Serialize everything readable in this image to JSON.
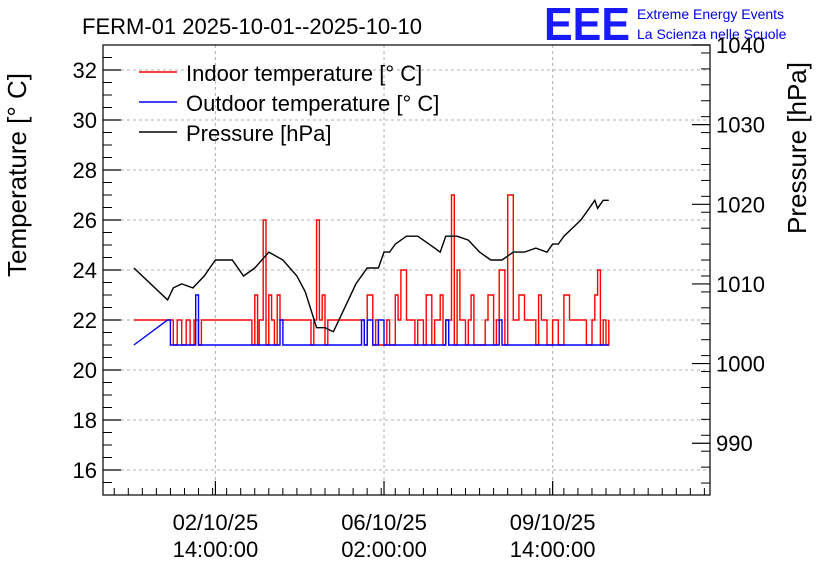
{
  "header": {
    "title": "FERM-01 2025-10-01--2025-10-10",
    "logo_text": "EEE",
    "org_line1": "Extreme Energy Events",
    "org_line2": "La Scienza nelle Scuole"
  },
  "chart_data": {
    "type": "line",
    "title": "FERM-01 2025-10-01--2025-10-10",
    "ylabel": "Temperature [° C]",
    "y2label": "Pressure [hPa]",
    "ylim": [
      15,
      33
    ],
    "y2lim": [
      983.5,
      1040
    ],
    "yticks": [
      16,
      18,
      20,
      22,
      24,
      26,
      28,
      30,
      32
    ],
    "y2ticks": [
      990,
      1000,
      1010,
      1020,
      1030,
      1040
    ],
    "xlim": [
      0,
      10.8
    ],
    "xticks": [
      {
        "t": 2.0,
        "line1": "02/10/25",
        "line2": "14:00:00"
      },
      {
        "t": 5.0,
        "line1": "06/10/25",
        "line2": "02:00:00"
      },
      {
        "t": 8.0,
        "line1": "09/10/25",
        "line2": "14:00:00"
      }
    ],
    "grid": true,
    "legend_position": "top-left",
    "legend": [
      {
        "label": "Indoor temperature [° C]",
        "color": "#ff0000"
      },
      {
        "label": "Outdoor temperature [° C]",
        "color": "#0000ff"
      },
      {
        "label": "Pressure [hPa]",
        "color": "#000000"
      }
    ],
    "series": [
      {
        "name": "Indoor temperature [° C]",
        "axis": "left",
        "color": "#ff0000",
        "x": [
          0.55,
          1.15,
          1.2,
          1.25,
          1.32,
          1.4,
          1.48,
          1.55,
          1.62,
          1.7,
          1.75,
          2.6,
          2.65,
          2.7,
          2.75,
          2.78,
          2.85,
          2.9,
          2.95,
          3.0,
          3.05,
          3.1,
          3.15,
          3.2,
          3.7,
          3.75,
          3.8,
          3.85,
          3.9,
          3.95,
          4.0,
          4.05,
          4.1,
          4.6,
          4.65,
          4.7,
          4.8,
          4.85,
          4.9,
          5.05,
          5.1,
          5.2,
          5.25,
          5.3,
          5.4,
          5.55,
          5.6,
          5.7,
          5.75,
          5.85,
          5.9,
          6.0,
          6.05,
          6.1,
          6.2,
          6.25,
          6.3,
          6.35,
          6.45,
          6.5,
          6.55,
          6.6,
          6.8,
          6.85,
          6.95,
          7.0,
          7.05,
          7.15,
          7.2,
          7.3,
          7.4,
          7.5,
          7.7,
          7.75,
          7.8,
          7.9,
          8.0,
          8.05,
          8.1,
          8.2,
          8.3,
          8.5,
          8.6,
          8.7,
          8.75,
          8.8,
          8.85,
          8.9,
          8.95,
          9.0
        ],
        "values": [
          22,
          22,
          22,
          21,
          22,
          21,
          22,
          21,
          22,
          21,
          22,
          22,
          21,
          23,
          21,
          22,
          26,
          21,
          23,
          22,
          21,
          23,
          22,
          22,
          21,
          22,
          26,
          22,
          23,
          21,
          22,
          22,
          22,
          22,
          21,
          23,
          21,
          22,
          21,
          22,
          21,
          23,
          22,
          24,
          22,
          21,
          22,
          21,
          23,
          21,
          22,
          23,
          21,
          22,
          27,
          21,
          24,
          22,
          21,
          22,
          23,
          21,
          22,
          23,
          21,
          22,
          24,
          21,
          27,
          22,
          23,
          22,
          21,
          23,
          22,
          21,
          22,
          22,
          21,
          23,
          22,
          22,
          21,
          22,
          23,
          24,
          21,
          22,
          21,
          22
        ]
      },
      {
        "name": "Outdoor temperature [° C]",
        "axis": "left",
        "color": "#0000ff",
        "x": [
          0.55,
          1.15,
          1.2,
          1.6,
          1.65,
          1.7,
          3.1,
          3.15,
          3.2,
          4.55,
          4.6,
          4.65,
          4.7,
          4.8,
          4.9,
          5.0,
          6.05,
          6.1,
          6.15,
          7.0,
          7.05,
          7.1,
          9.0
        ],
        "values": [
          21,
          22,
          21,
          21,
          23,
          21,
          21,
          22,
          21,
          21,
          22,
          21,
          22,
          21,
          22,
          21,
          21,
          22,
          21,
          21,
          22,
          21,
          21
        ]
      },
      {
        "name": "Pressure [hPa]",
        "axis": "right",
        "color": "#000000",
        "x": [
          0.55,
          1.15,
          1.25,
          1.4,
          1.6,
          1.8,
          2.0,
          2.3,
          2.5,
          2.7,
          2.95,
          3.2,
          3.45,
          3.6,
          3.8,
          3.95,
          4.1,
          4.3,
          4.5,
          4.7,
          4.9,
          5.0,
          5.1,
          5.2,
          5.4,
          5.6,
          5.8,
          6.0,
          6.1,
          6.3,
          6.5,
          6.7,
          6.9,
          7.0,
          7.1,
          7.3,
          7.5,
          7.7,
          7.9,
          8.0,
          8.1,
          8.2,
          8.35,
          8.5,
          8.6,
          8.7,
          8.75,
          8.8,
          8.9,
          9.0
        ],
        "values": [
          1012,
          1008,
          1009.5,
          1010,
          1009.5,
          1011,
          1013,
          1013,
          1011,
          1012,
          1014,
          1013,
          1011,
          1009,
          1004.5,
          1004.5,
          1004,
          1007,
          1010,
          1012,
          1012,
          1014,
          1014,
          1015,
          1016,
          1016,
          1015,
          1014,
          1016,
          1016,
          1015.5,
          1014,
          1013,
          1013,
          1013,
          1014,
          1014,
          1014.5,
          1014,
          1015,
          1015,
          1016,
          1017,
          1018,
          1019,
          1020,
          1020.5,
          1019.5,
          1020.5,
          1020.5
        ]
      }
    ]
  }
}
